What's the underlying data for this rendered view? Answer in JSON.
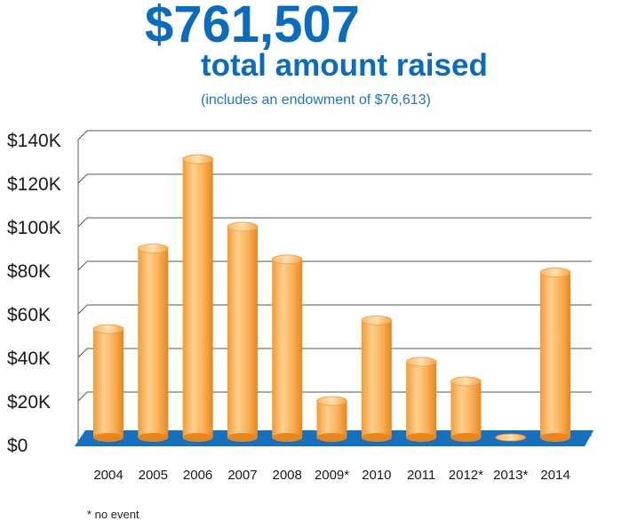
{
  "header": {
    "total": "$761,507",
    "subtitle": "total amount raised",
    "note": "(includes an endowment of $76,613)"
  },
  "footnote": "* no event",
  "colors": {
    "title_blue": "#0a6cc0",
    "floor_blue": "#1670c0",
    "bar_orange": "#f9a543",
    "bar_highlight": "#fcd08e",
    "bar_shadow": "#e8861e"
  },
  "chart_data": {
    "type": "bar",
    "title": "",
    "xlabel": "",
    "ylabel": "",
    "ylim": [
      0,
      140000
    ],
    "yticks": [
      0,
      20000,
      40000,
      60000,
      80000,
      100000,
      120000,
      140000
    ],
    "ytick_labels": [
      "$0",
      "$20K",
      "$40K",
      "$60K",
      "$80K",
      "$100K",
      "$120K",
      "$140K"
    ],
    "grid": true,
    "categories": [
      "2004",
      "2005",
      "2006",
      "2007",
      "2008",
      "2009*",
      "2010",
      "2011",
      "2012*",
      "2013*",
      "2014"
    ],
    "values": [
      53000,
      90000,
      131000,
      100000,
      85000,
      20000,
      57000,
      38000,
      29000,
      0,
      79000
    ]
  }
}
